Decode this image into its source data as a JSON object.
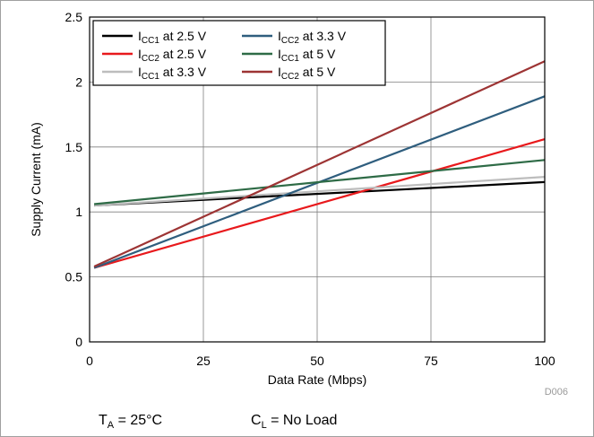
{
  "chart_data": {
    "type": "line",
    "title": "",
    "xlabel": "Data Rate (Mbps)",
    "ylabel": "Supply Current (mA)",
    "xlim": [
      0,
      100
    ],
    "ylim": [
      0,
      2.5
    ],
    "xticks": [
      0,
      25,
      50,
      75,
      100
    ],
    "yticks": [
      0,
      0.5,
      1,
      1.5,
      2,
      2.5
    ],
    "xtick_labels": [
      "0",
      "25",
      "50",
      "75",
      "100"
    ],
    "ytick_labels": [
      "0",
      "0.5",
      "1",
      "1.5",
      "2",
      "2.5"
    ],
    "grid": true,
    "legend_position": "top-left",
    "series": [
      {
        "name_main": "I",
        "name_sub": "CC1",
        "name_rest": " at 2.5 V",
        "color": "#000000",
        "x": [
          1,
          100
        ],
        "y": [
          1.05,
          1.23
        ]
      },
      {
        "name_main": "I",
        "name_sub": "CC2",
        "name_rest": " at 2.5 V",
        "color": "#e8191c",
        "x": [
          1,
          100
        ],
        "y": [
          0.57,
          1.56
        ]
      },
      {
        "name_main": "I",
        "name_sub": "CC1",
        "name_rest": " at 3.3 V",
        "color": "#bdbdbd",
        "x": [
          1,
          100
        ],
        "y": [
          1.05,
          1.27
        ]
      },
      {
        "name_main": "I",
        "name_sub": "CC2",
        "name_rest": " at 3.3 V",
        "color": "#2f5e7e",
        "x": [
          1,
          100
        ],
        "y": [
          0.57,
          1.89
        ]
      },
      {
        "name_main": "I",
        "name_sub": "CC1",
        "name_rest": " at 5 V",
        "color": "#2e6b46",
        "x": [
          1,
          100
        ],
        "y": [
          1.06,
          1.4
        ]
      },
      {
        "name_main": "I",
        "name_sub": "CC2",
        "name_rest": " at 5 V",
        "color": "#9d3434",
        "x": [
          1,
          100
        ],
        "y": [
          0.58,
          2.16
        ]
      }
    ],
    "code_label": "D006",
    "conditions": [
      {
        "main": "T",
        "sub": "A",
        "rest": " = 25°C"
      },
      {
        "main": "C",
        "sub": "L",
        "rest": " = No Load"
      }
    ]
  }
}
